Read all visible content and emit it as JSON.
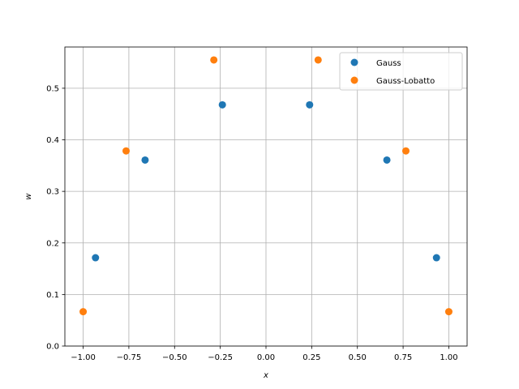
{
  "chart_data": {
    "type": "scatter",
    "title": "",
    "xlabel": "x",
    "ylabel": "w",
    "xlim": [
      -1.1,
      1.1
    ],
    "ylim": [
      0.0,
      0.58
    ],
    "xticks": [
      -1.0,
      -0.75,
      -0.5,
      -0.25,
      0.0,
      0.25,
      0.5,
      0.75,
      1.0
    ],
    "xtick_labels": [
      "−1.00",
      "−0.75",
      "−0.50",
      "−0.25",
      "0.00",
      "0.25",
      "0.50",
      "0.75",
      "1.00"
    ],
    "yticks": [
      0.0,
      0.1,
      0.2,
      0.3,
      0.4,
      0.5
    ],
    "ytick_labels": [
      "0.0",
      "0.1",
      "0.2",
      "0.3",
      "0.4",
      "0.5"
    ],
    "grid": true,
    "legend_position": "top-right",
    "series": [
      {
        "name": "Gauss",
        "color": "#1f77b4",
        "x": [
          -0.9325,
          -0.6612,
          -0.2386,
          0.2386,
          0.6612,
          0.9325
        ],
        "y": [
          0.1713,
          0.3608,
          0.4679,
          0.4679,
          0.3608,
          0.1713
        ]
      },
      {
        "name": "Gauss-Lobatto",
        "color": "#ff7f0e",
        "x": [
          -1.0,
          -0.7651,
          -0.2852,
          0.2852,
          0.7651,
          1.0
        ],
        "y": [
          0.0667,
          0.3785,
          0.5549,
          0.5549,
          0.3785,
          0.0667
        ]
      }
    ]
  }
}
